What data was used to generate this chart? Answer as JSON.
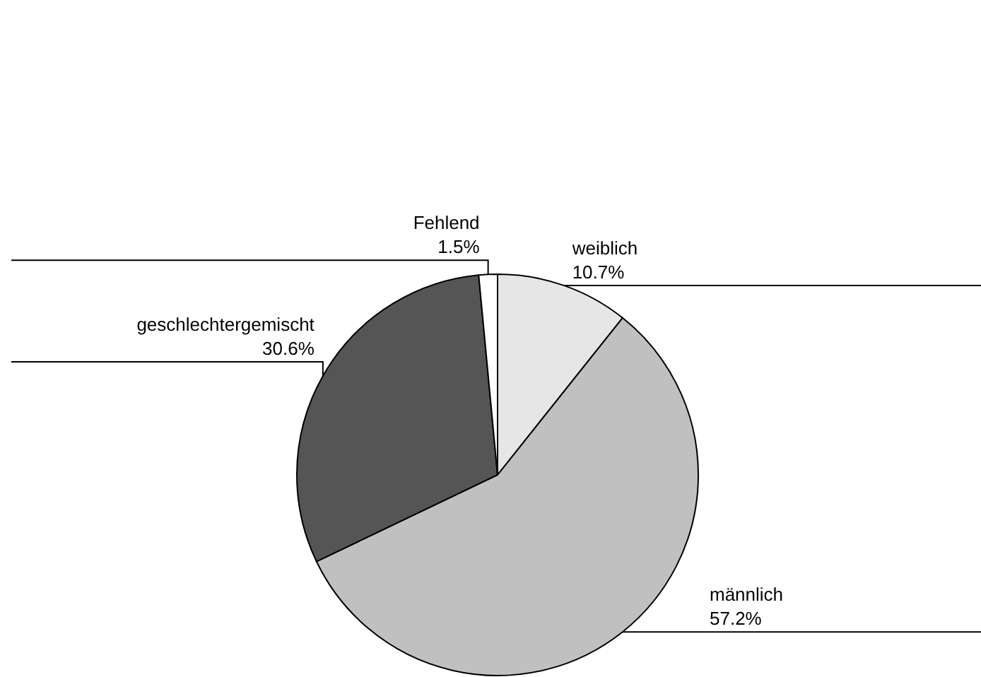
{
  "chart_data": {
    "type": "pie",
    "categories": [
      "weiblich",
      "männlich",
      "geschlechtergemischt",
      "Fehlend"
    ],
    "values": [
      10.7,
      57.2,
      30.6,
      1.5
    ],
    "value_labels": [
      "10.7%",
      "57.2%",
      "30.6%",
      "1.5%"
    ],
    "colors": [
      "#e6e6e6",
      "#c0c0c0",
      "#555555",
      "#ffffff"
    ]
  }
}
